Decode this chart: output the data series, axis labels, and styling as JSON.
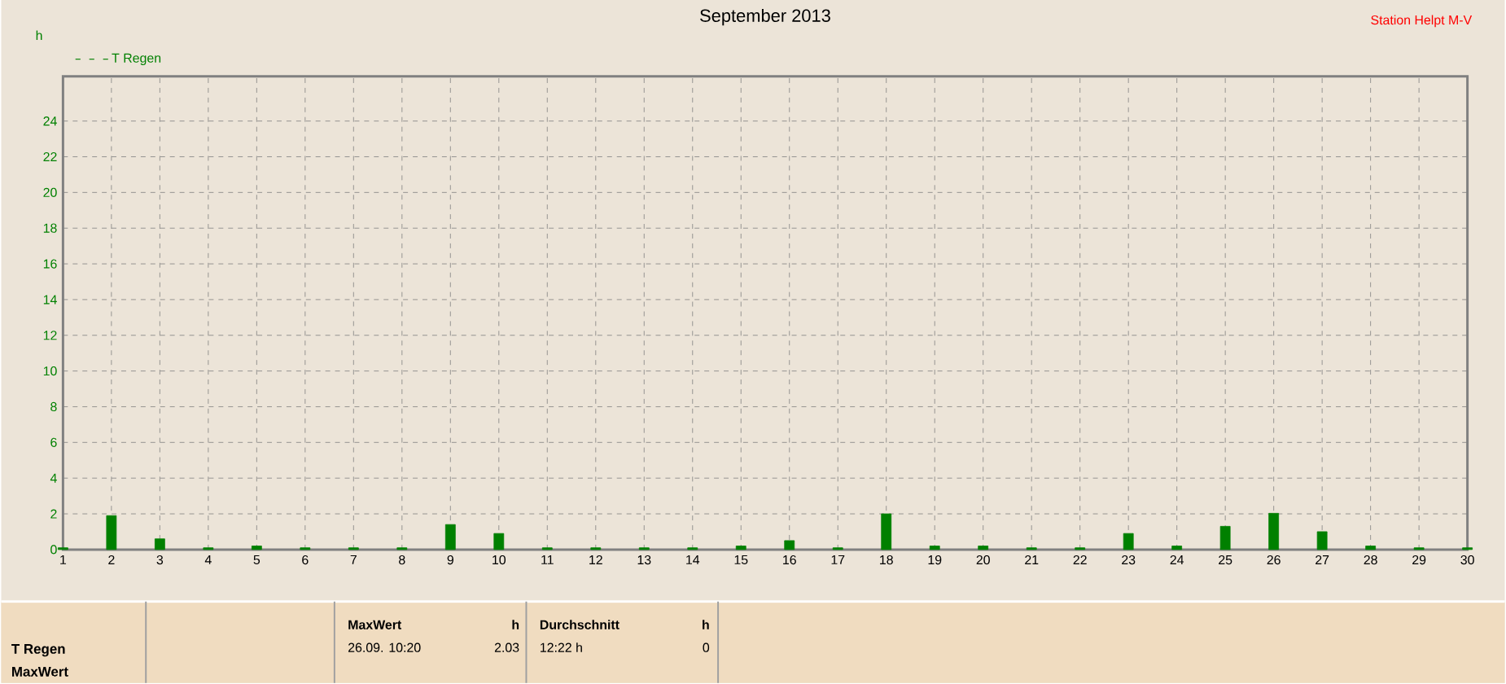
{
  "chart_data": {
    "type": "bar",
    "title": "September 2013",
    "ylabel": "h",
    "x": [
      1,
      2,
      3,
      4,
      5,
      6,
      7,
      8,
      9,
      10,
      11,
      12,
      13,
      14,
      15,
      16,
      17,
      18,
      19,
      20,
      21,
      22,
      23,
      24,
      25,
      26,
      27,
      28,
      29,
      30
    ],
    "series": [
      {
        "name": "T Regen",
        "color": "#008000",
        "values": [
          0.1,
          1.9,
          0.6,
          0.1,
          0.2,
          0.1,
          0.1,
          0.1,
          1.4,
          0.9,
          0.1,
          0.1,
          0.1,
          0.1,
          0.2,
          0.5,
          0.1,
          2.0,
          0.2,
          0.2,
          0.1,
          0.1,
          0.9,
          0.2,
          1.3,
          2.03,
          1.0,
          0.2,
          0.1,
          0.1
        ]
      }
    ],
    "xlim": [
      1,
      30
    ],
    "xticks": [
      1,
      2,
      3,
      4,
      5,
      6,
      7,
      8,
      9,
      10,
      11,
      12,
      13,
      14,
      15,
      16,
      17,
      18,
      19,
      20,
      21,
      22,
      23,
      24,
      25,
      26,
      27,
      28,
      29,
      30
    ],
    "ylim": [
      0,
      26.5
    ],
    "yticks": [
      0,
      2,
      4,
      6,
      8,
      10,
      12,
      14,
      16,
      18,
      20,
      22,
      24
    ],
    "grid": true,
    "legend": "top left",
    "annotations": [
      "Station Helpt M-V",
      "T Regen",
      "MaxWert",
      "MaxWert",
      "h",
      "26.09. 10:20",
      "2.03",
      "Durchschnitt",
      "h",
      "12:22 h",
      "0"
    ]
  }
}
